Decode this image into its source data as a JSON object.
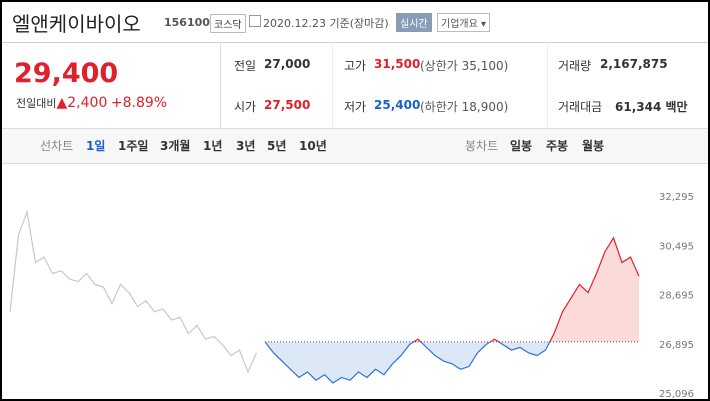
{
  "header": {
    "name": "엘앤케이바이오",
    "code": "156100",
    "market": "코스닥",
    "date": "2020.12.23",
    "basis": "기준(장마감)",
    "realtime": "실시간",
    "overview": "기업개요"
  },
  "price": {
    "current": "29,400",
    "change_label": "전일대비",
    "change": "2,400",
    "rate": "+8.89%"
  },
  "quote": {
    "rows": [
      [
        {
          "label": "전일",
          "value": "27,000"
        },
        {
          "label": "고가",
          "value": "31,500",
          "limit": "(상한가 35,100)"
        },
        {
          "label": "거래량",
          "value": "2,167,875"
        }
      ],
      [
        {
          "label": "시가",
          "value": "27,500"
        },
        {
          "label": "저가",
          "value": "25,400",
          "limit": "(하한가 18,900)"
        },
        {
          "label": "거래대금",
          "value": "61,344 백만"
        }
      ]
    ]
  },
  "tabs": {
    "line_label": "선차트",
    "line_items": [
      "1일",
      "1주일",
      "3개월",
      "1년",
      "3년",
      "5년",
      "10년"
    ],
    "candle_label": "봉차트",
    "candle_items": [
      "일봉",
      "주봉",
      "월봉"
    ]
  },
  "chart_data": {
    "type": "line",
    "baseline": 27000,
    "ylim": [
      25096,
      32295
    ],
    "yticks": [
      {
        "value": 32295,
        "label": "32,295"
      },
      {
        "value": 30495,
        "label": "30,495"
      },
      {
        "value": 28695,
        "label": "28,695"
      },
      {
        "value": 26895,
        "label": "26,895"
      },
      {
        "value": 25096,
        "label": "25,096"
      }
    ],
    "series": [
      {
        "color": "#c8c8c8",
        "values": [
          28100,
          30900,
          31750,
          29900,
          30100,
          29500,
          29600,
          29300,
          29200,
          29500,
          29100,
          29000,
          28400,
          29100,
          28800,
          28300,
          28500,
          28100,
          28200,
          27800,
          27900,
          27300,
          27600,
          27100,
          27200,
          26900,
          26500,
          26700,
          25900,
          26600,
          null,
          null,
          null,
          null,
          null,
          null,
          null,
          null,
          null,
          null,
          null,
          null,
          null,
          null,
          null,
          null,
          null,
          null,
          null,
          null,
          null,
          null,
          null,
          null,
          null,
          null,
          null,
          null,
          null,
          null,
          null,
          null,
          null,
          null,
          null,
          null,
          null,
          null,
          null,
          null,
          null,
          null,
          null,
          null,
          null
        ]
      },
      {
        "color": "#2f6fd6",
        "values": [
          null,
          null,
          null,
          null,
          null,
          null,
          null,
          null,
          null,
          null,
          null,
          null,
          null,
          null,
          null,
          null,
          null,
          null,
          null,
          null,
          null,
          null,
          null,
          null,
          null,
          null,
          null,
          null,
          null,
          null,
          27000,
          26600,
          26300,
          26000,
          25700,
          25900,
          25600,
          25800,
          25500,
          25700,
          25600,
          25900,
          25700,
          26000,
          25800,
          26200,
          26500,
          26900,
          27100,
          26800,
          26500,
          26300,
          26200,
          26000,
          26100,
          26600,
          26900,
          27100,
          26900,
          26700,
          26800,
          26600,
          26500,
          26700,
          27300,
          28100,
          28600,
          29100,
          28800,
          29500,
          30300,
          30800,
          29900,
          30100,
          29400
        ]
      }
    ]
  }
}
